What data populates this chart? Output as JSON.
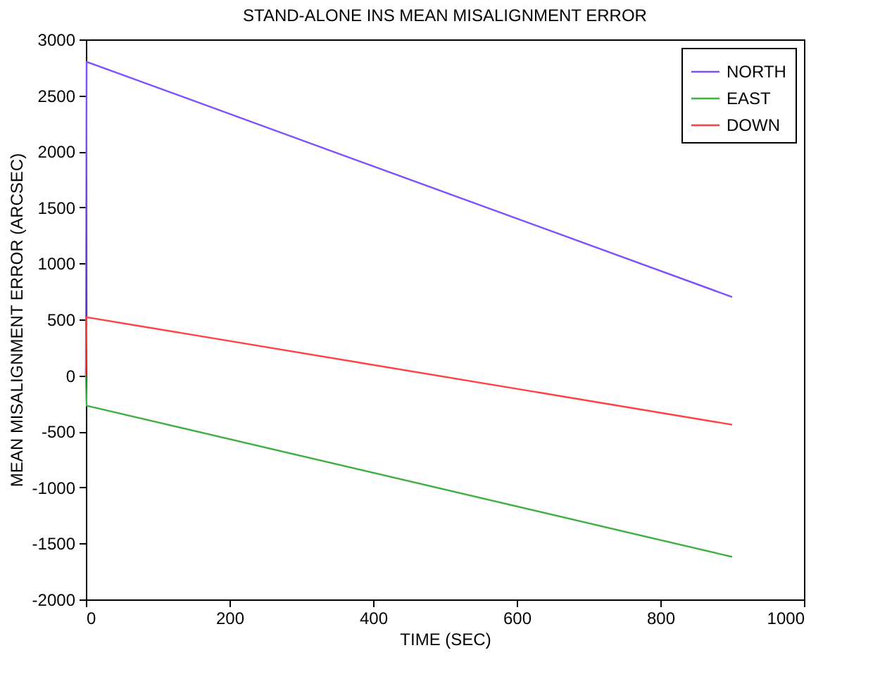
{
  "chart_data": {
    "type": "line",
    "title": "STAND-ALONE INS MEAN MISALIGNMENT ERROR",
    "xlabel": "TIME (SEC)",
    "ylabel": "MEAN MISALIGNMENT ERROR (ARCSEC)",
    "x": [
      0,
      1,
      900
    ],
    "series": [
      {
        "name": "NORTH",
        "color": "#7f4fff",
        "values": [
          0,
          2800,
          700
        ]
      },
      {
        "name": "EAST",
        "color": "#3fb03f",
        "values": [
          0,
          -270,
          -1620
        ]
      },
      {
        "name": "DOWN",
        "color": "#ff4040",
        "values": [
          0,
          520,
          -440
        ]
      }
    ],
    "xlim": [
      0,
      1000
    ],
    "xticks": [
      0,
      200,
      400,
      600,
      800,
      1000
    ],
    "ylim": [
      -2000,
      3000
    ],
    "yticks": [
      -2000,
      -1500,
      -1000,
      -500,
      0,
      500,
      1000,
      1500,
      2000,
      2500,
      3000
    ],
    "grid": false,
    "legend": "top right",
    "line_style": "solid",
    "marker": "none"
  }
}
